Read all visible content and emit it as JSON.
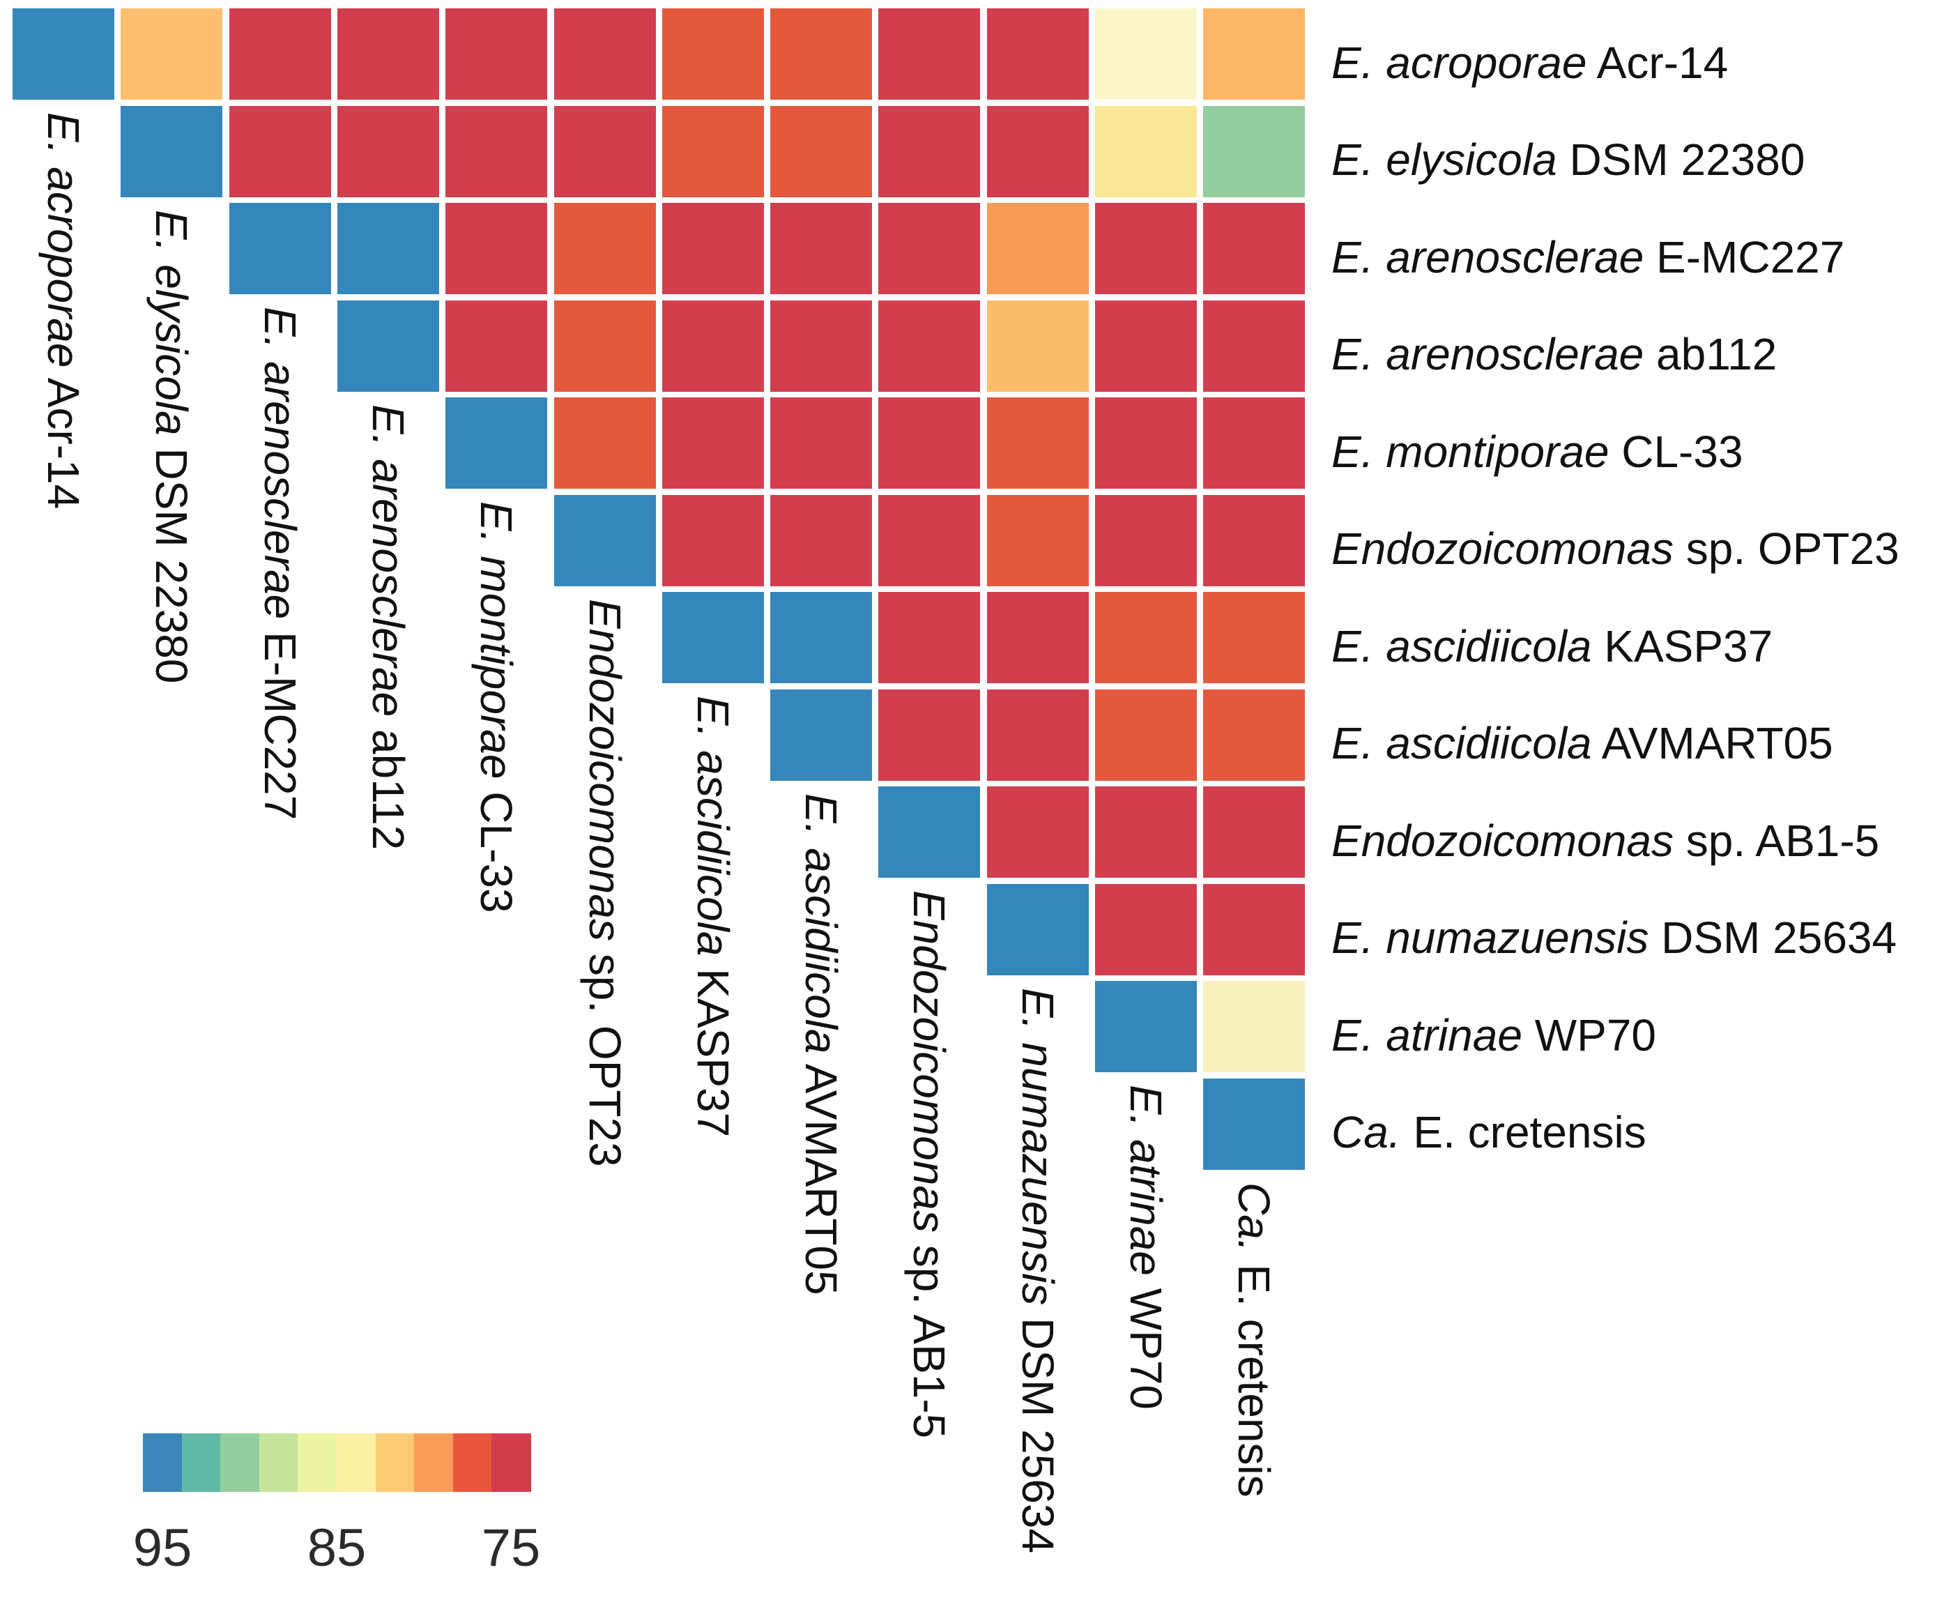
{
  "taxa": [
    {
      "italic": "E. acroporae",
      "regular": "Acr-14",
      "label": "E. acroporae Acr-14"
    },
    {
      "italic": "E. elysicola",
      "regular": "DSM 22380",
      "label": "E. elysicola DSM 22380"
    },
    {
      "italic": "E. arenosclerae",
      "regular": "E-MC227",
      "label": "E. arenosclerae E-MC227"
    },
    {
      "italic": "E. arenosclerae",
      "regular": "ab112",
      "label": "E. arenosclerae ab112"
    },
    {
      "italic": "E. montiporae",
      "regular": "CL-33",
      "label": "E. montiporae CL-33"
    },
    {
      "italic": "Endozoicomonas",
      "regular": "sp. OPT23",
      "label": "Endozoicomonas sp. OPT23"
    },
    {
      "italic": "E. ascidiicola",
      "regular": "KASP37",
      "label": "E. ascidiicola KASP37"
    },
    {
      "italic": "E. ascidiicola",
      "regular": "AVMART05",
      "label": "E. ascidiicola AVMART05"
    },
    {
      "italic": "Endozoicomonas",
      "regular": "sp. AB1-5",
      "label": "Endozoicomonas sp. AB1-5"
    },
    {
      "italic": "E. numazuensis",
      "regular": "DSM 25634",
      "label": "E. numazuensis DSM 25634"
    },
    {
      "italic": "E. atrinae",
      "regular": "WP70",
      "label": "E. atrinae WP70"
    },
    {
      "italic": "Ca.",
      "regular": "E. cretensis",
      "label": "Ca. E. cretensis"
    }
  ],
  "legend": {
    "ticks": [
      "95",
      "85",
      "75"
    ],
    "colors": [
      "#3b86ba",
      "#5fbaa5",
      "#93cf9e",
      "#c6e39a",
      "#ecf4a2",
      "#fcf0a2",
      "#fdcb73",
      "#f99c59",
      "#e8573d",
      "#d23d4e"
    ]
  },
  "chart_data": {
    "type": "heatmap",
    "title": "",
    "description": "Upper-triangular pairwise identity matrix; blue = high identity (>=95), red = low (<=75); diagonal = self comparison",
    "rows": [
      "E. acroporae Acr-14",
      "E. elysicola DSM 22380",
      "E. arenosclerae E-MC227",
      "E. arenosclerae ab112",
      "E. montiporae CL-33",
      "Endozoicomonas sp. OPT23",
      "E. ascidiicola KASP37",
      "E. ascidiicola AVMART05",
      "Endozoicomonas sp. AB1-5",
      "E. numazuensis DSM 25634",
      "E. atrinae WP70",
      "Ca. E. cretensis"
    ],
    "columns": [
      "E. acroporae Acr-14",
      "E. elysicola DSM 22380",
      "E. arenosclerae E-MC227",
      "E. arenosclerae ab112",
      "E. montiporae CL-33",
      "Endozoicomonas sp. OPT23",
      "E. ascidiicola KASP37",
      "E. ascidiicola AVMART05",
      "Endozoicomonas sp. AB1-5",
      "E. numazuensis DSM 25634",
      "E. atrinae WP70",
      "Ca. E. cretensis"
    ],
    "cell_colors": [
      [
        "#3486bb",
        "#fdbf6f",
        "#d23e4e",
        "#d23e4e",
        "#d23e4e",
        "#d23e4e",
        "#e4593e",
        "#e4593e",
        "#d23e4e",
        "#d23e4e",
        "#fcf5c9",
        "#fbb767"
      ],
      [
        null,
        "#3486bb",
        "#d23e4e",
        "#d23e4e",
        "#d23e4e",
        "#d23e4e",
        "#e4593e",
        "#e4593e",
        "#d23e4e",
        "#d23e4e",
        "#fae795",
        "#93cd9e"
      ],
      [
        null,
        null,
        "#3486bb",
        "#3486bb",
        "#d23e4e",
        "#e4593e",
        "#d23e4e",
        "#d23e4e",
        "#d23e4e",
        "#f89b58",
        "#d23e4e",
        "#d23e4e"
      ],
      [
        null,
        null,
        null,
        "#3486bb",
        "#d23e4e",
        "#e4593e",
        "#d23e4e",
        "#d23e4e",
        "#d23e4e",
        "#fcbd6b",
        "#d23e4e",
        "#d23e4e"
      ],
      [
        null,
        null,
        null,
        null,
        "#3486bb",
        "#e4593e",
        "#d23e4e",
        "#d23e4e",
        "#d23e4e",
        "#e4593e",
        "#d23e4e",
        "#d23e4e"
      ],
      [
        null,
        null,
        null,
        null,
        null,
        "#3486bb",
        "#d23e4e",
        "#d23e4e",
        "#d23e4e",
        "#e4593e",
        "#d23e4e",
        "#d23e4e"
      ],
      [
        null,
        null,
        null,
        null,
        null,
        null,
        "#3486bb",
        "#3486bb",
        "#d23e4e",
        "#d23e4e",
        "#e4593e",
        "#e4593e"
      ],
      [
        null,
        null,
        null,
        null,
        null,
        null,
        null,
        "#3486bb",
        "#d23e4e",
        "#d23e4e",
        "#e4593e",
        "#e4593e"
      ],
      [
        null,
        null,
        null,
        null,
        null,
        null,
        null,
        null,
        "#3486bb",
        "#d23e4e",
        "#d23e4e",
        "#d23e4e"
      ],
      [
        null,
        null,
        null,
        null,
        null,
        null,
        null,
        null,
        null,
        "#3486bb",
        "#d23e4e",
        "#d23e4e"
      ],
      [
        null,
        null,
        null,
        null,
        null,
        null,
        null,
        null,
        null,
        null,
        "#3486bb",
        "#f9f1bc"
      ],
      [
        null,
        null,
        null,
        null,
        null,
        null,
        null,
        null,
        null,
        null,
        null,
        "#3486bb"
      ]
    ],
    "values_approx": [
      [
        100,
        81.5,
        75,
        75,
        75,
        75,
        77,
        77,
        75,
        75,
        85,
        80.5
      ],
      [
        null,
        100,
        75,
        75,
        75,
        75,
        77,
        77,
        75,
        75,
        83.5,
        90.5
      ],
      [
        null,
        null,
        100,
        96,
        75,
        77,
        75,
        75,
        75,
        79.5,
        75,
        75
      ],
      [
        null,
        null,
        null,
        100,
        75,
        77,
        75,
        75,
        75,
        81.5,
        75,
        75
      ],
      [
        null,
        null,
        null,
        null,
        100,
        77,
        75,
        75,
        75,
        77,
        75,
        75
      ],
      [
        null,
        null,
        null,
        null,
        null,
        100,
        75,
        75,
        75,
        77,
        75,
        75
      ],
      [
        null,
        null,
        null,
        null,
        null,
        null,
        100,
        96,
        75,
        75,
        77,
        77
      ],
      [
        null,
        null,
        null,
        null,
        null,
        null,
        null,
        100,
        75,
        75,
        77,
        77
      ],
      [
        null,
        null,
        null,
        null,
        null,
        null,
        null,
        null,
        100,
        75,
        75,
        75
      ],
      [
        null,
        null,
        null,
        null,
        null,
        null,
        null,
        null,
        null,
        100,
        75,
        75
      ],
      [
        null,
        null,
        null,
        null,
        null,
        null,
        null,
        null,
        null,
        null,
        100,
        85
      ],
      [
        null,
        null,
        null,
        null,
        null,
        null,
        null,
        null,
        null,
        null,
        null,
        100
      ]
    ],
    "color_scale": {
      "tick_labels": [
        "95",
        "85",
        "75"
      ],
      "palette": [
        "#3b86ba",
        "#5fbaa5",
        "#93cf9e",
        "#c6e39a",
        "#ecf4a2",
        "#fcf0a2",
        "#fdcb73",
        "#f99c59",
        "#e8573d",
        "#d23d4e"
      ],
      "orientation": "horizontal",
      "high_is_blue": true
    },
    "legend_position": "bottom-left",
    "grid": false
  }
}
